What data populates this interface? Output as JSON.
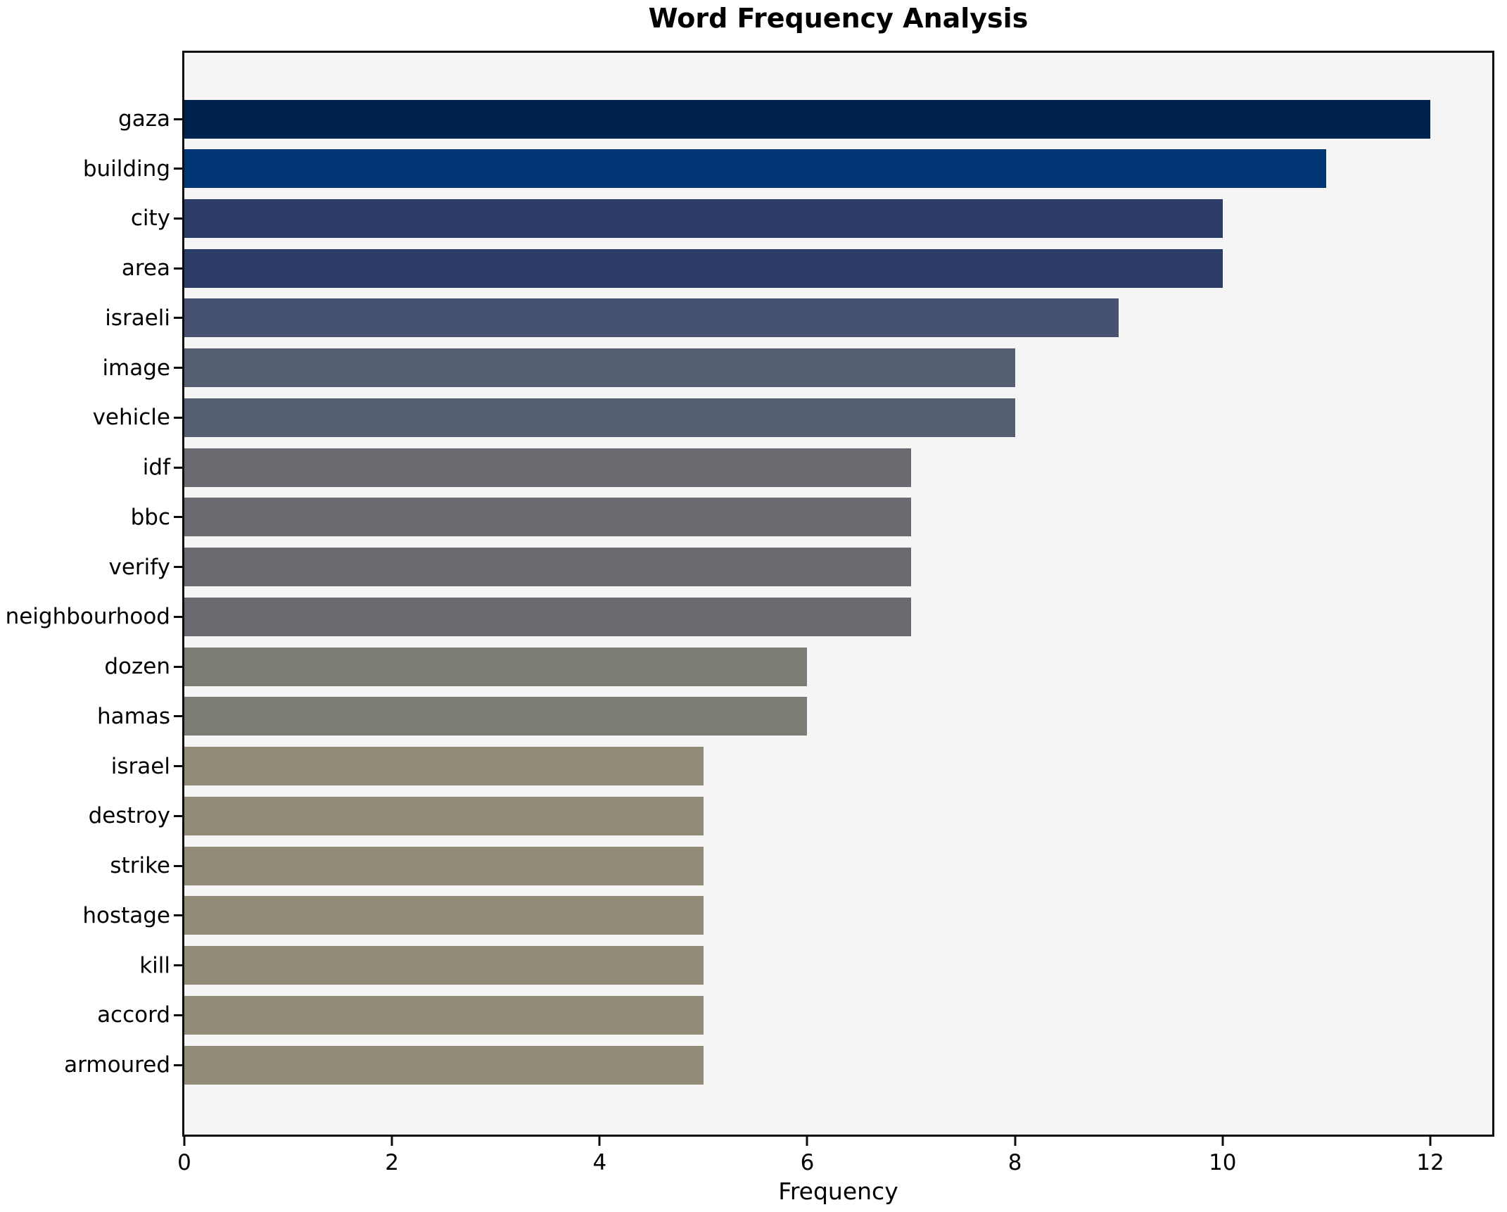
{
  "chart_data": {
    "type": "bar",
    "orientation": "horizontal",
    "title": "Word Frequency Analysis",
    "xlabel": "Frequency",
    "ylabel": "",
    "categories": [
      "gaza",
      "building",
      "city",
      "area",
      "israeli",
      "image",
      "vehicle",
      "idf",
      "bbc",
      "verify",
      "neighbourhood",
      "dozen",
      "hamas",
      "israel",
      "destroy",
      "strike",
      "hostage",
      "kill",
      "accord",
      "armoured"
    ],
    "values": [
      12,
      11,
      10,
      10,
      9,
      8,
      8,
      7,
      7,
      7,
      7,
      6,
      6,
      5,
      5,
      5,
      5,
      5,
      5,
      5
    ],
    "bar_colors": [
      "#00224e",
      "#003673",
      "#2c3e68",
      "#2c3e68",
      "#475170",
      "#565e71",
      "#565e71",
      "#6a6b70",
      "#6a6b70",
      "#6a6b70",
      "#6a6b70",
      "#7c7b74",
      "#7c7b74",
      "#918b77",
      "#918b77",
      "#918b77",
      "#918b77",
      "#918b77",
      "#918b77",
      "#918b77"
    ],
    "xticks": [
      0,
      2,
      4,
      6,
      8,
      10,
      12
    ],
    "xlim": [
      0,
      12.6
    ],
    "grid": false,
    "legend": "none",
    "plot_background": "#f5f5f6",
    "figure_background": "#ffffff",
    "spine_color": "#0c0c0c",
    "text_color": "#000000"
  }
}
